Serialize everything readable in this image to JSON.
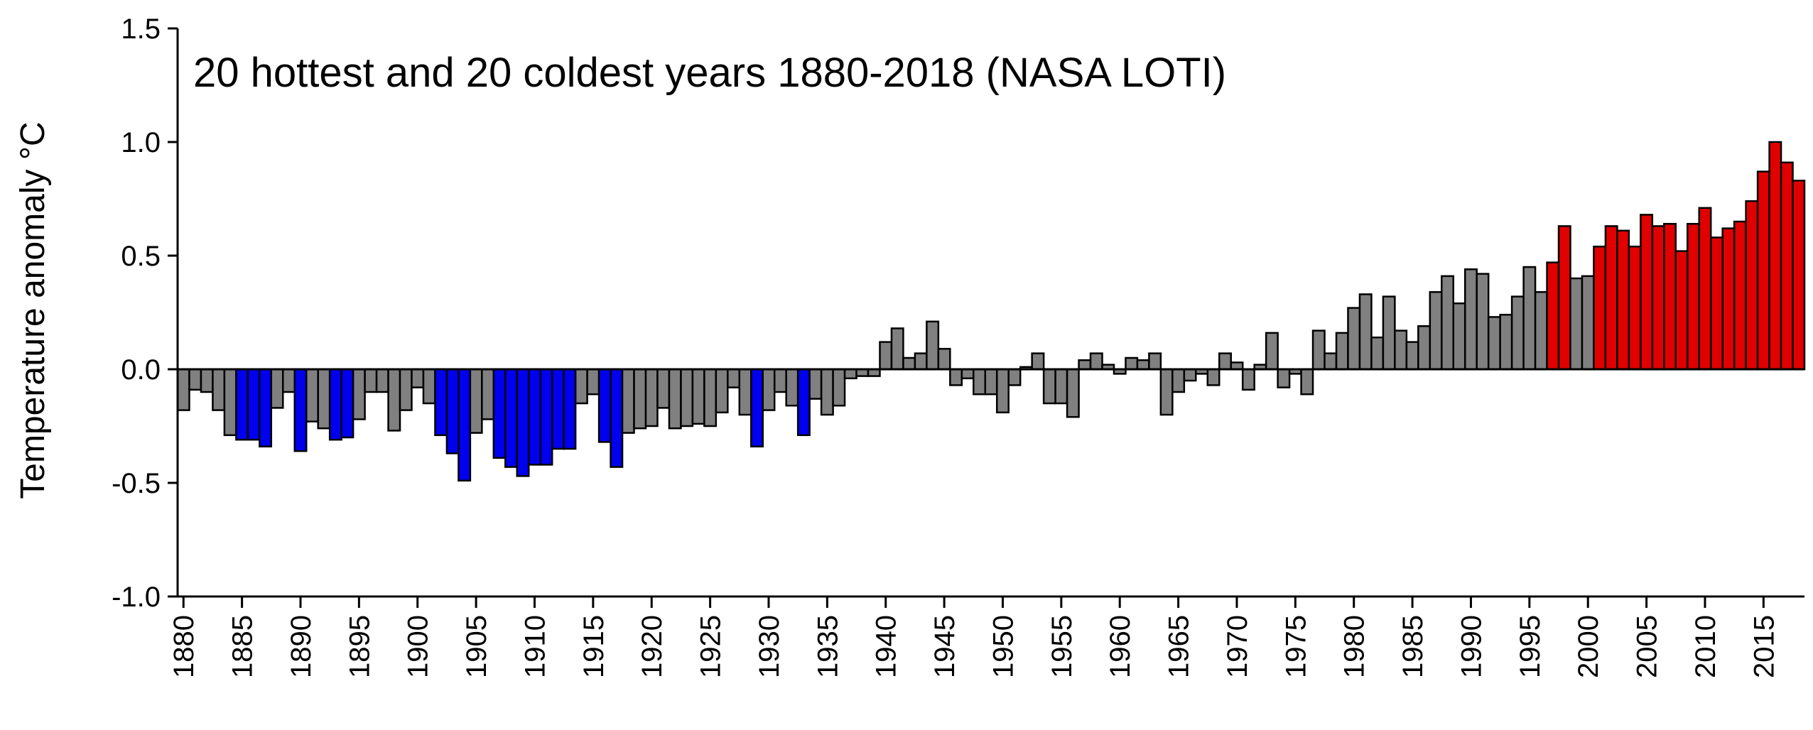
{
  "chart_data": {
    "type": "bar",
    "title": "20 hottest and 20 coldest years 1880-2018 (NASA LOTI)",
    "xlabel": "",
    "ylabel": "Temperature anomaly °C",
    "ylim": [
      -1.0,
      1.5
    ],
    "xlim": [
      1880,
      2018
    ],
    "grid": false,
    "y_ticks": [
      -1.0,
      -0.5,
      0.0,
      0.5,
      1.0,
      1.5
    ],
    "y_tick_labels": [
      "-1.0",
      "-0.5",
      "0.0",
      "0.5",
      "1.0",
      "1.5"
    ],
    "x_ticks": [
      1880,
      1885,
      1890,
      1895,
      1900,
      1905,
      1910,
      1915,
      1920,
      1925,
      1930,
      1935,
      1940,
      1945,
      1950,
      1955,
      1960,
      1965,
      1970,
      1975,
      1980,
      1985,
      1990,
      1995,
      2000,
      2005,
      2010,
      2015
    ],
    "colors": {
      "hottest": "#e00000",
      "coldest": "#0000ee",
      "other": "#808080"
    },
    "x": [
      1880,
      1881,
      1882,
      1883,
      1884,
      1885,
      1886,
      1887,
      1888,
      1889,
      1890,
      1891,
      1892,
      1893,
      1894,
      1895,
      1896,
      1897,
      1898,
      1899,
      1900,
      1901,
      1902,
      1903,
      1904,
      1905,
      1906,
      1907,
      1908,
      1909,
      1910,
      1911,
      1912,
      1913,
      1914,
      1915,
      1916,
      1917,
      1918,
      1919,
      1920,
      1921,
      1922,
      1923,
      1924,
      1925,
      1926,
      1927,
      1928,
      1929,
      1930,
      1931,
      1932,
      1933,
      1934,
      1935,
      1936,
      1937,
      1938,
      1939,
      1940,
      1941,
      1942,
      1943,
      1944,
      1945,
      1946,
      1947,
      1948,
      1949,
      1950,
      1951,
      1952,
      1953,
      1954,
      1955,
      1956,
      1957,
      1958,
      1959,
      1960,
      1961,
      1962,
      1963,
      1964,
      1965,
      1966,
      1967,
      1968,
      1969,
      1970,
      1971,
      1972,
      1973,
      1974,
      1975,
      1976,
      1977,
      1978,
      1979,
      1980,
      1981,
      1982,
      1983,
      1984,
      1985,
      1986,
      1987,
      1988,
      1989,
      1990,
      1991,
      1992,
      1993,
      1994,
      1995,
      1996,
      1997,
      1998,
      1999,
      2000,
      2001,
      2002,
      2003,
      2004,
      2005,
      2006,
      2007,
      2008,
      2009,
      2010,
      2011,
      2012,
      2013,
      2014,
      2015,
      2016,
      2017,
      2018
    ],
    "values": [
      -0.18,
      -0.09,
      -0.1,
      -0.18,
      -0.29,
      -0.31,
      -0.31,
      -0.34,
      -0.17,
      -0.1,
      -0.36,
      -0.23,
      -0.26,
      -0.31,
      -0.3,
      -0.22,
      -0.1,
      -0.1,
      -0.27,
      -0.18,
      -0.08,
      -0.15,
      -0.29,
      -0.37,
      -0.49,
      -0.28,
      -0.22,
      -0.39,
      -0.43,
      -0.47,
      -0.42,
      -0.42,
      -0.35,
      -0.35,
      -0.15,
      -0.11,
      -0.32,
      -0.43,
      -0.28,
      -0.26,
      -0.25,
      -0.17,
      -0.26,
      -0.25,
      -0.24,
      -0.25,
      -0.19,
      -0.08,
      -0.2,
      -0.34,
      -0.18,
      -0.1,
      -0.16,
      -0.29,
      -0.13,
      -0.2,
      -0.16,
      -0.04,
      -0.03,
      -0.03,
      0.12,
      0.18,
      0.05,
      0.07,
      0.21,
      0.09,
      -0.07,
      -0.04,
      -0.11,
      -0.11,
      -0.19,
      -0.07,
      0.01,
      0.07,
      -0.15,
      -0.15,
      -0.21,
      0.04,
      0.07,
      0.02,
      -0.02,
      0.05,
      0.04,
      0.07,
      -0.2,
      -0.1,
      -0.05,
      -0.02,
      -0.07,
      0.07,
      0.03,
      -0.09,
      0.02,
      0.16,
      -0.08,
      -0.02,
      -0.11,
      0.17,
      0.07,
      0.16,
      0.27,
      0.33,
      0.14,
      0.32,
      0.17,
      0.12,
      0.19,
      0.34,
      0.41,
      0.29,
      0.44,
      0.42,
      0.23,
      0.24,
      0.32,
      0.45,
      0.34,
      0.47,
      0.63,
      0.4,
      0.41,
      0.54,
      0.63,
      0.61,
      0.54,
      0.68,
      0.63,
      0.64,
      0.52,
      0.64,
      0.71,
      0.58,
      0.62,
      0.65,
      0.74,
      0.87,
      1.0,
      0.91,
      0.83
    ],
    "category": [
      "other",
      "other",
      "other",
      "other",
      "other",
      "coldest",
      "coldest",
      "coldest",
      "other",
      "other",
      "coldest",
      "other",
      "other",
      "coldest",
      "coldest",
      "other",
      "other",
      "other",
      "other",
      "other",
      "other",
      "other",
      "coldest",
      "coldest",
      "coldest",
      "other",
      "other",
      "coldest",
      "coldest",
      "coldest",
      "coldest",
      "coldest",
      "coldest",
      "coldest",
      "other",
      "other",
      "coldest",
      "coldest",
      "other",
      "other",
      "other",
      "other",
      "other",
      "other",
      "other",
      "other",
      "other",
      "other",
      "other",
      "coldest",
      "other",
      "other",
      "other",
      "coldest",
      "other",
      "other",
      "other",
      "other",
      "other",
      "other",
      "other",
      "other",
      "other",
      "other",
      "other",
      "other",
      "other",
      "other",
      "other",
      "other",
      "other",
      "other",
      "other",
      "other",
      "other",
      "other",
      "other",
      "other",
      "other",
      "other",
      "other",
      "other",
      "other",
      "other",
      "other",
      "other",
      "other",
      "other",
      "other",
      "other",
      "other",
      "other",
      "other",
      "other",
      "other",
      "other",
      "other",
      "other",
      "other",
      "other",
      "other",
      "other",
      "other",
      "other",
      "other",
      "other",
      "other",
      "other",
      "other",
      "other",
      "other",
      "other",
      "other",
      "other",
      "other",
      "other",
      "other",
      "hottest",
      "hottest",
      "other",
      "other",
      "hottest",
      "hottest",
      "hottest",
      "hottest",
      "hottest",
      "hottest",
      "hottest",
      "hottest",
      "hottest",
      "hottest",
      "hottest",
      "hottest",
      "hottest",
      "hottest",
      "hottest",
      "hottest",
      "hottest",
      "hottest"
    ]
  }
}
